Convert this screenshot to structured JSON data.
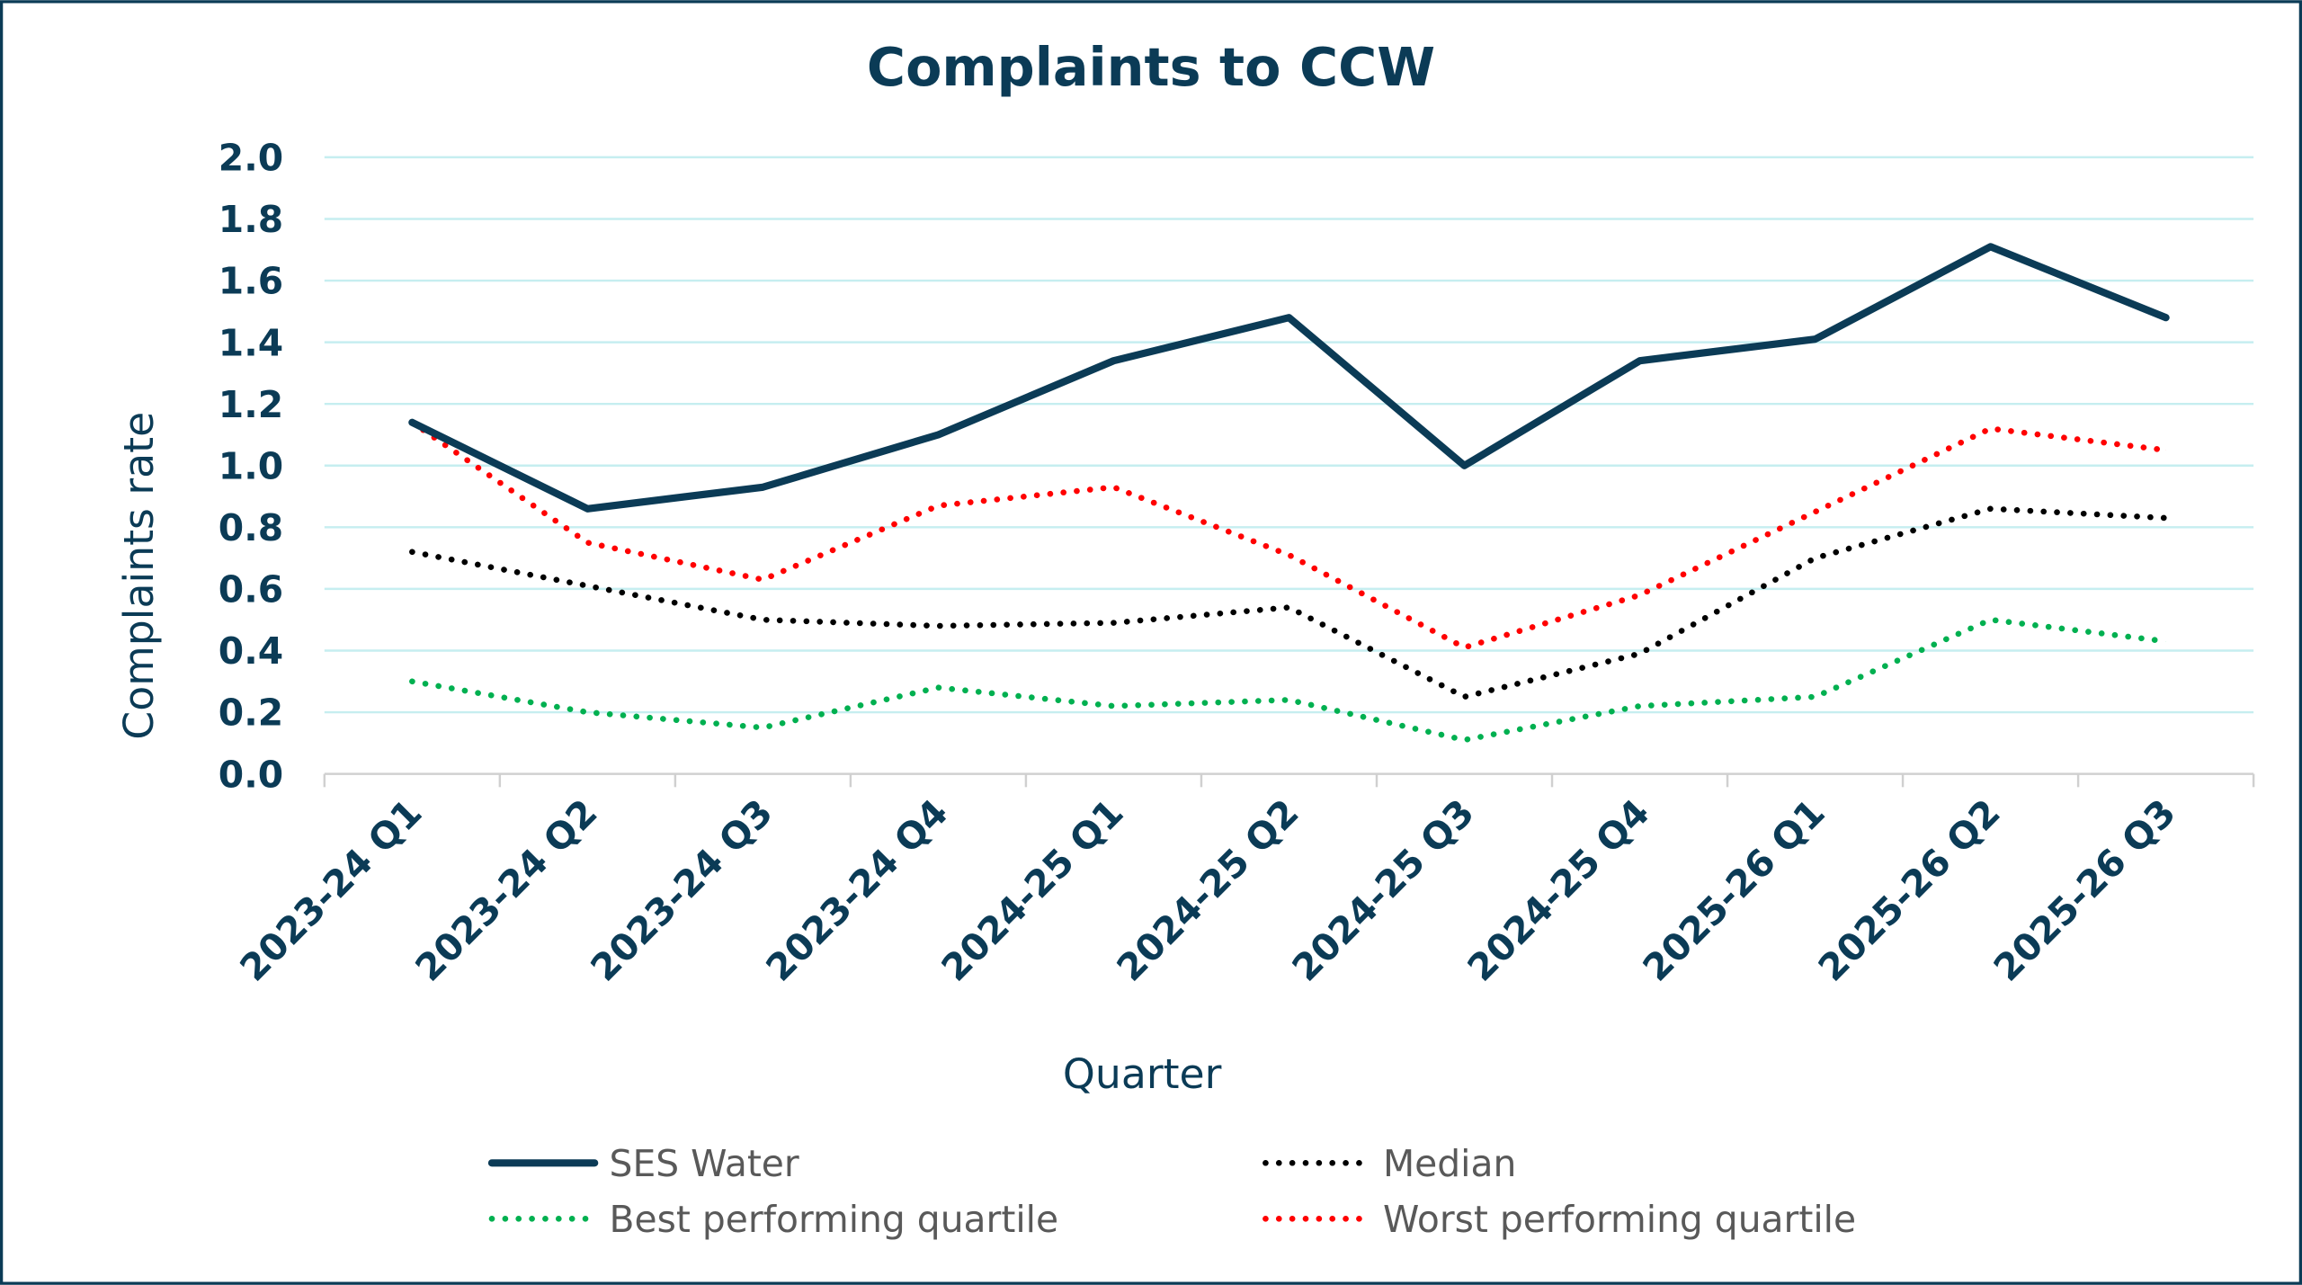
{
  "chart_data": {
    "type": "line",
    "title": "Complaints to CCW",
    "xlabel": "Quarter",
    "ylabel": "Complaints rate",
    "ylim": [
      0,
      2.0
    ],
    "yticks": [
      "0.0",
      "0.2",
      "0.4",
      "0.6",
      "0.8",
      "1.0",
      "1.2",
      "1.4",
      "1.6",
      "1.8",
      "2.0"
    ],
    "grid": true,
    "legend_position": "bottom",
    "categories": [
      "2023-24 Q1",
      "2023-24 Q2",
      "2023-24 Q3",
      "2023-24 Q4",
      "2024-25 Q1",
      "2024-25 Q2",
      "2024-25 Q3",
      "2024-25 Q4",
      "2025-26 Q1",
      "2025-26 Q2",
      "2025-26 Q3"
    ],
    "series": [
      {
        "name": "SES Water",
        "style": "solid",
        "color": "#0b3b56",
        "values": [
          1.14,
          0.86,
          0.93,
          1.1,
          1.34,
          1.48,
          1.0,
          1.34,
          1.41,
          1.71,
          1.48
        ]
      },
      {
        "name": "Median",
        "style": "dotted",
        "color": "#000000",
        "values": [
          0.72,
          0.61,
          0.5,
          0.48,
          0.49,
          0.54,
          0.25,
          0.39,
          0.7,
          0.86,
          0.83
        ]
      },
      {
        "name": "Best performing quartile",
        "style": "dotted",
        "color": "#00b050",
        "values": [
          0.3,
          0.2,
          0.15,
          0.28,
          0.22,
          0.24,
          0.11,
          0.22,
          0.25,
          0.5,
          0.43
        ]
      },
      {
        "name": "Worst performing quartile",
        "style": "dotted",
        "color": "#ff0000",
        "values": [
          1.14,
          0.75,
          0.63,
          0.87,
          0.93,
          0.71,
          0.41,
          0.58,
          0.85,
          1.12,
          1.05
        ]
      }
    ],
    "colors": {
      "text": "#0b3b56",
      "grid": "#c6eef0",
      "axis": "#d0d0d0",
      "legend_text": "#595959",
      "frame": "#0b3b56"
    }
  }
}
